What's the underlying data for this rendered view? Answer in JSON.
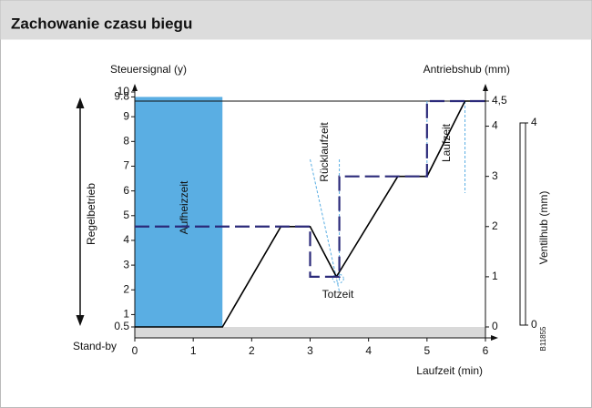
{
  "header": {
    "title": "Zachowanie czasu biegu"
  },
  "chart_data": {
    "type": "line",
    "ylabel": "Steuersignal (y)",
    "y2label": "Antriebshub (mm)",
    "xlabel": "Laufzeit (min)",
    "xlim": [
      0,
      6
    ],
    "xticks": [
      0,
      1,
      2,
      3,
      4,
      5,
      6
    ],
    "ylim": [
      0.5,
      10
    ],
    "yticks": [
      0.5,
      1,
      2,
      3,
      4,
      5,
      6,
      7,
      8,
      9,
      9.8,
      10
    ],
    "y2lim": [
      0,
      4.5
    ],
    "y2ticks": [
      0,
      1,
      2,
      3,
      4,
      {
        "value": 4.5,
        "label": "4,5"
      }
    ],
    "series": [
      {
        "name": "Antriebshub",
        "color": "#000000",
        "axis": "y2",
        "style": "solid",
        "x": [
          0,
          1.5,
          2.5,
          3,
          3.45,
          4.5,
          5,
          5.65,
          6
        ],
        "values": [
          0,
          0,
          2,
          2,
          1,
          3,
          3,
          4.5,
          4.5
        ]
      },
      {
        "name": "Steuersignal",
        "color": "#2b2a7a",
        "axis": "y2",
        "style": "dashed",
        "x": [
          0,
          3,
          3,
          3.5,
          3.5,
          5,
          5,
          6
        ],
        "values": [
          2,
          2,
          1,
          1,
          3,
          3,
          4.5,
          4.5
        ]
      }
    ],
    "aufheizzeit": {
      "label": "Aufheizzeit",
      "x": [
        0,
        1.5
      ],
      "color": "#5aaee3"
    },
    "annotations": [
      "Regelbetrieb",
      "Stand-by",
      "Rücklaufzeit",
      "Totzeit",
      "Laufzeit",
      "B11855"
    ],
    "ventilhub": {
      "label": "Ventilhub (mm)",
      "ticks": [
        0,
        4
      ]
    }
  }
}
